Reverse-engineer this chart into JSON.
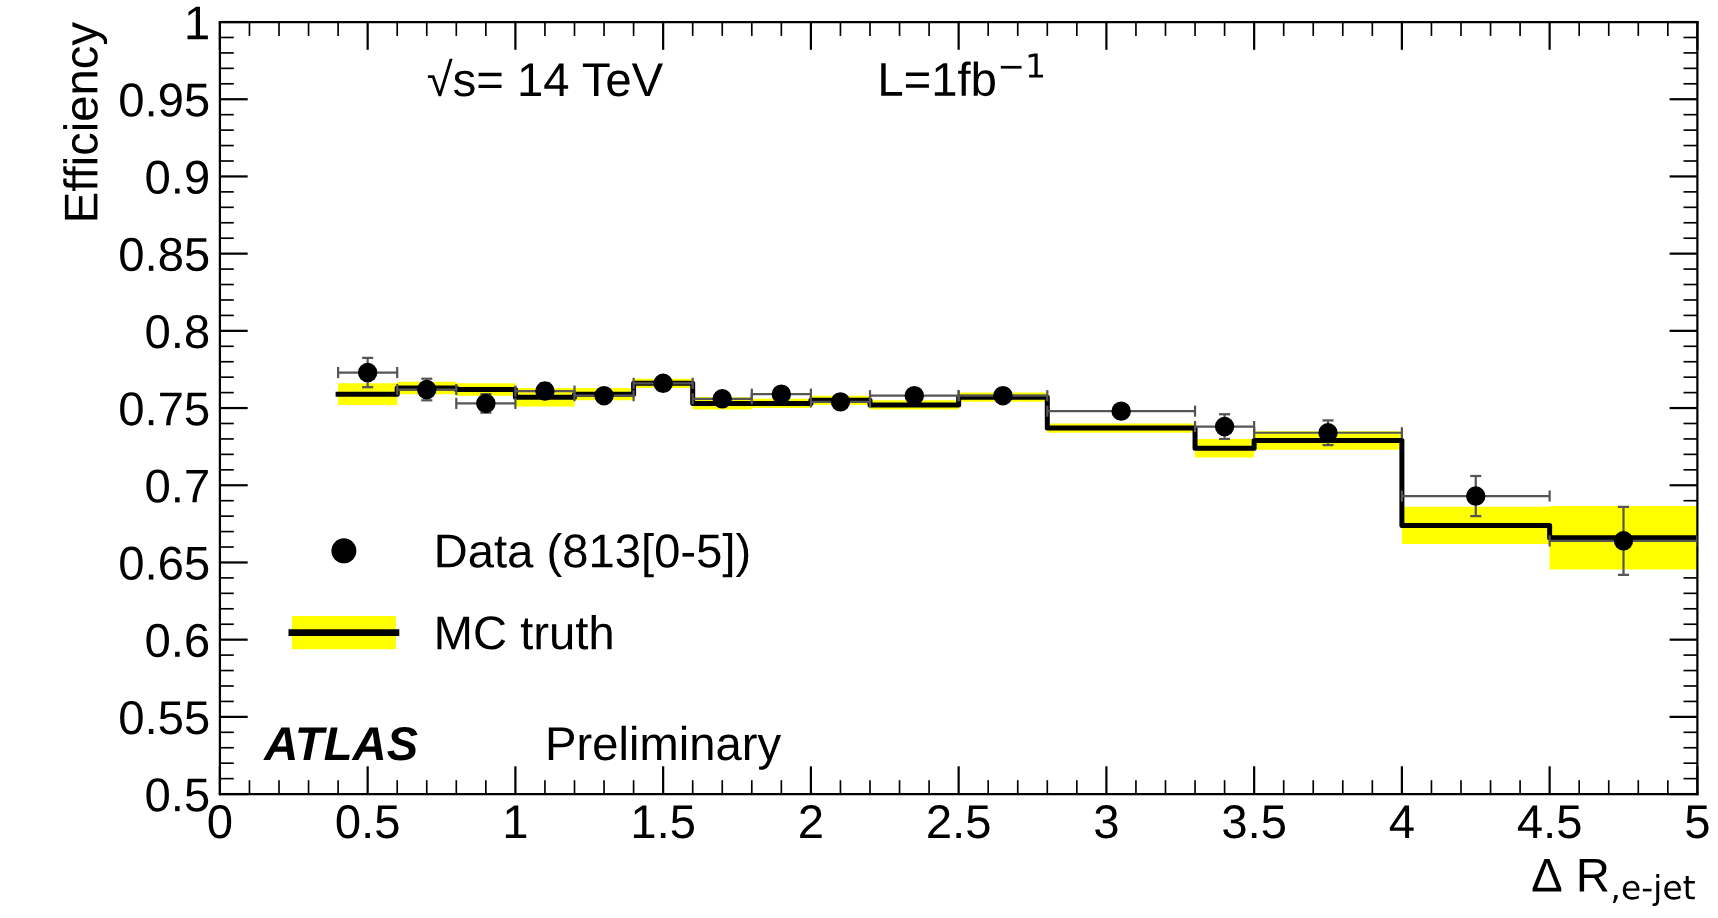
{
  "chart_data": {
    "type": "scatter",
    "xlabel": "Δ R$_{,e-jet}$",
    "ylabel": "Efficiency",
    "annotations": [
      "√s= 14 TeV",
      "L=1fb$^{−1}$",
      "ATLAS",
      "Preliminary"
    ],
    "xlim": [
      0,
      5
    ],
    "ylim": [
      0.5,
      1
    ],
    "xticks": [
      0,
      0.5,
      1,
      1.5,
      2,
      2.5,
      3,
      3.5,
      4,
      4.5,
      5
    ],
    "yticks": [
      0.5,
      0.55,
      0.6,
      0.65,
      0.7,
      0.75,
      0.8,
      0.85,
      0.9,
      0.95,
      1
    ],
    "grid": false,
    "legend": "bottom left",
    "marker": "circle",
    "series": [
      {
        "name": "Data (813[0-5])",
        "color": "#000000",
        "x": [
          0.5,
          0.7,
          0.9,
          1.1,
          1.3,
          1.5,
          1.7,
          1.9,
          2.1,
          2.35,
          2.65,
          3.05,
          3.4,
          3.75,
          4.25,
          4.75
        ],
        "values": [
          0.773,
          0.762,
          0.753,
          0.761,
          0.758,
          0.766,
          0.756,
          0.759,
          0.754,
          0.758,
          0.758,
          0.748,
          0.738,
          0.734,
          0.693,
          0.664
        ],
        "errors": [
          0.0095,
          0.007,
          0.006,
          0.005,
          null,
          null,
          null,
          null,
          null,
          null,
          null,
          null,
          0.008,
          0.008,
          0.013,
          0.022
        ],
        "xerrors": [
          0.1,
          0.1,
          0.1,
          0.1,
          0.1,
          0.1,
          0.1,
          0.1,
          0.1,
          0.15,
          0.15,
          0.25,
          0.1,
          0.25,
          0.25,
          0.25
        ]
      },
      {
        "name": "MC truth",
        "type": "step",
        "color": "#000000",
        "marker": "none",
        "x": [
          0.4,
          0.6,
          0.8,
          1.0,
          1.2,
          1.4,
          1.6,
          1.8,
          2.0,
          2.2,
          2.5,
          2.8,
          3.3,
          3.5,
          4.0,
          4.5
        ],
        "values": [
          0.759,
          0.763,
          0.762,
          0.757,
          0.759,
          0.766,
          0.753,
          0.753,
          0.755,
          0.752,
          0.757,
          0.737,
          0.724,
          0.729,
          0.674,
          0.666
        ],
        "lower": [
          0.752,
          0.759,
          0.758,
          0.751,
          0.755,
          0.763,
          0.749,
          0.75,
          0.752,
          0.749,
          0.754,
          0.734,
          0.718,
          0.723,
          0.662,
          0.6455
        ],
        "upper": [
          0.766,
          0.767,
          0.766,
          0.763,
          0.763,
          0.769,
          0.757,
          0.756,
          0.758,
          0.755,
          0.76,
          0.74,
          0.73,
          0.735,
          0.686,
          0.6865
        ]
      }
    ]
  }
}
